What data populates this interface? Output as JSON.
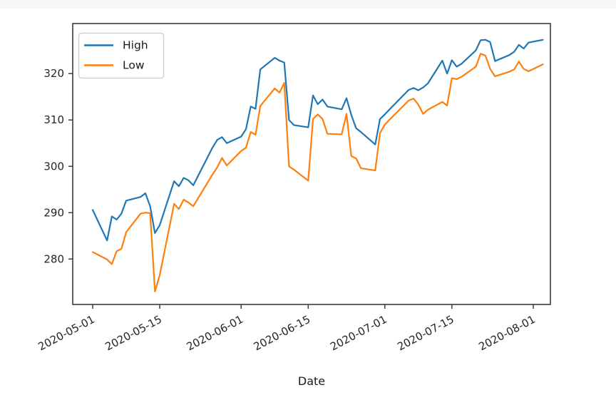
{
  "page": {
    "top_strip_color": "#f6f7f8",
    "background_color": "#ffffff"
  },
  "chart_data": {
    "type": "line",
    "title": "",
    "xlabel": "Date",
    "ylabel": "",
    "grid": false,
    "legend_position": "upper left",
    "axis_color": "#3b3b3b",
    "y_tick_labels": [
      "280",
      "290",
      "300",
      "310",
      "320"
    ],
    "y_tick_values": [
      280,
      290,
      300,
      310,
      320
    ],
    "x_tick_labels": [
      "2020-05-01",
      "2020-05-15",
      "2020-06-01",
      "2020-06-15",
      "2020-07-01",
      "2020-07-15",
      "2020-08-01"
    ],
    "x_tick_rotation_deg": -28,
    "ylim": [
      270.2,
      330.8
    ],
    "dates": [
      "2020-05-01",
      "2020-05-04",
      "2020-05-05",
      "2020-05-06",
      "2020-05-07",
      "2020-05-08",
      "2020-05-11",
      "2020-05-12",
      "2020-05-13",
      "2020-05-14",
      "2020-05-15",
      "2020-05-18",
      "2020-05-19",
      "2020-05-20",
      "2020-05-21",
      "2020-05-22",
      "2020-05-26",
      "2020-05-27",
      "2020-05-28",
      "2020-05-29",
      "2020-06-01",
      "2020-06-02",
      "2020-06-03",
      "2020-06-04",
      "2020-06-05",
      "2020-06-08",
      "2020-06-09",
      "2020-06-10",
      "2020-06-11",
      "2020-06-12",
      "2020-06-15",
      "2020-06-16",
      "2020-06-17",
      "2020-06-18",
      "2020-06-19",
      "2020-06-22",
      "2020-06-23",
      "2020-06-24",
      "2020-06-25",
      "2020-06-26",
      "2020-06-29",
      "2020-06-30",
      "2020-07-01",
      "2020-07-02",
      "2020-07-06",
      "2020-07-07",
      "2020-07-08",
      "2020-07-09",
      "2020-07-10",
      "2020-07-13",
      "2020-07-14",
      "2020-07-15",
      "2020-07-16",
      "2020-07-17",
      "2020-07-20",
      "2020-07-21",
      "2020-07-22",
      "2020-07-23",
      "2020-07-24",
      "2020-07-27",
      "2020-07-28",
      "2020-07-29",
      "2020-07-30",
      "2020-07-31",
      "2020-08-03"
    ],
    "series": [
      {
        "name": "High",
        "color": "#1f77b4",
        "values": [
          290.6,
          284.0,
          289.2,
          288.5,
          289.8,
          292.6,
          293.4,
          294.2,
          291.4,
          285.6,
          287.3,
          296.8,
          295.7,
          297.5,
          297.0,
          295.9,
          304.0,
          305.7,
          306.3,
          305.0,
          306.4,
          308.0,
          312.9,
          312.4,
          320.9,
          323.4,
          322.8,
          322.4,
          310.0,
          308.9,
          308.4,
          315.3,
          313.4,
          314.4,
          312.9,
          312.3,
          314.7,
          311.1,
          308.2,
          307.4,
          304.7,
          310.2,
          311.2,
          312.3,
          316.5,
          316.9,
          316.4,
          317.0,
          317.9,
          322.8,
          320.0,
          322.9,
          321.5,
          322.1,
          325.0,
          327.2,
          327.3,
          326.8,
          322.7,
          324.0,
          324.7,
          326.2,
          325.4,
          326.7,
          327.3
        ]
      },
      {
        "name": "Low",
        "color": "#ff7f0e",
        "values": [
          281.5,
          279.9,
          278.9,
          281.7,
          282.2,
          285.8,
          289.8,
          290.0,
          289.9,
          273.0,
          276.5,
          291.9,
          290.8,
          292.8,
          292.2,
          291.4,
          298.2,
          299.8,
          301.8,
          300.2,
          303.3,
          304.0,
          307.4,
          306.8,
          313.0,
          316.8,
          315.9,
          318.0,
          300.0,
          299.3,
          296.9,
          310.2,
          311.2,
          310.2,
          307.0,
          306.9,
          311.3,
          302.2,
          301.7,
          299.6,
          299.1,
          307.2,
          309.0,
          310.1,
          314.2,
          314.6,
          313.3,
          311.3,
          312.2,
          313.9,
          313.1,
          319.0,
          318.8,
          319.3,
          321.5,
          324.3,
          323.9,
          321.0,
          319.4,
          320.4,
          320.9,
          322.6,
          321.0,
          320.5,
          322.0
        ]
      }
    ]
  }
}
